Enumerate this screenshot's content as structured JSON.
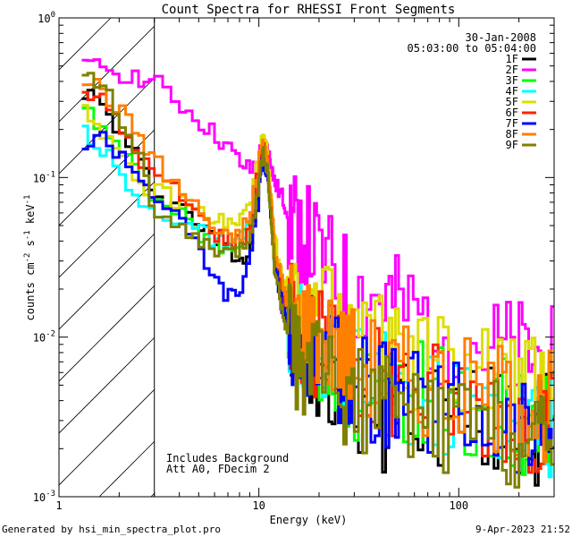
{
  "chart_data": {
    "type": "line",
    "title": "Count Spectra for RHESSI Front Segments",
    "xlabel": "Energy (keV)",
    "ylabel": "counts cm^-2 s^-1 keV^-1",
    "ylabel_parts": {
      "base": "counts cm",
      "exp1": "-2",
      "mid1": " s",
      "exp2": "-1",
      "mid2": " keV",
      "exp3": "-1"
    },
    "x_scale": "log",
    "y_scale": "log",
    "xlim": [
      1,
      300
    ],
    "ylim": [
      0.001,
      1
    ],
    "x_ticks": [
      {
        "value": 1,
        "label": "1"
      },
      {
        "value": 10,
        "label": "10"
      },
      {
        "value": 100,
        "label": "100"
      }
    ],
    "y_ticks": [
      {
        "value": 0.001,
        "base": "10",
        "exp": "-3"
      },
      {
        "value": 0.01,
        "base": "10",
        "exp": "-2"
      },
      {
        "value": 0.1,
        "base": "10",
        "exp": "-1"
      },
      {
        "value": 1,
        "base": "10",
        "exp": "0"
      }
    ],
    "hatched_region": {
      "x_from": 1,
      "x_to": 3
    },
    "date_label": "30-Jan-2008",
    "time_label": "05:03:00 to 05:04:00",
    "annotations": [
      "Includes Background",
      "Att A0, FDecim 2"
    ],
    "footer_left": "Generated by hsi_min_spectra_plot.pro",
    "footer_right": "9-Apr-2023 21:52",
    "series": [
      {
        "name": "1F",
        "color": "#000000",
        "x": [
          1.3,
          1.6,
          2,
          2.5,
          3,
          4,
          5,
          6,
          7,
          8,
          9,
          10,
          10.5,
          11,
          11.5,
          12,
          13,
          14,
          15,
          17,
          20,
          25,
          30,
          40,
          50,
          70,
          100,
          150,
          200,
          250,
          300
        ],
        "y": [
          0.35,
          0.28,
          0.18,
          0.12,
          0.08,
          0.065,
          0.05,
          0.038,
          0.035,
          0.03,
          0.04,
          0.11,
          0.14,
          0.12,
          0.06,
          0.03,
          0.018,
          0.01,
          0.009,
          0.008,
          0.007,
          0.006,
          0.004,
          0.003,
          0.004,
          0.0035,
          0.003,
          0.003,
          0.0028,
          0.0025,
          0.003
        ]
      },
      {
        "name": "2F",
        "color": "#ff00ff",
        "x": [
          1.3,
          1.6,
          2,
          2.5,
          3,
          4,
          5,
          6,
          7,
          8,
          9,
          10,
          10.5,
          11,
          11.5,
          12,
          13,
          14,
          15,
          17,
          20,
          25,
          30,
          40,
          50,
          70,
          100,
          150,
          200,
          250,
          300
        ],
        "y": [
          0.48,
          0.5,
          0.45,
          0.42,
          0.38,
          0.28,
          0.22,
          0.18,
          0.15,
          0.12,
          0.11,
          0.14,
          0.16,
          0.15,
          0.12,
          0.09,
          0.075,
          0.06,
          0.05,
          0.042,
          0.03,
          0.022,
          0.018,
          0.017,
          0.015,
          0.012,
          0.01,
          0.008,
          0.0075,
          0.007,
          0.007
        ]
      },
      {
        "name": "3F",
        "color": "#00ff00",
        "x": [
          1.3,
          1.6,
          2,
          2.5,
          3,
          4,
          5,
          6,
          7,
          8,
          9,
          10,
          10.5,
          11,
          11.5,
          12,
          13,
          14,
          15,
          17,
          20,
          25,
          30,
          40,
          50,
          70,
          100,
          150,
          200,
          250,
          300
        ],
        "y": [
          0.25,
          0.22,
          0.15,
          0.1,
          0.07,
          0.06,
          0.045,
          0.04,
          0.035,
          0.04,
          0.05,
          0.13,
          0.15,
          0.13,
          0.06,
          0.035,
          0.02,
          0.014,
          0.012,
          0.01,
          0.008,
          0.007,
          0.005,
          0.004,
          0.005,
          0.004,
          0.004,
          0.0035,
          0.003,
          0.003,
          0.0035
        ]
      },
      {
        "name": "4F",
        "color": "#00ffff",
        "x": [
          1.3,
          1.6,
          2,
          2.5,
          3,
          4,
          5,
          6,
          7,
          8,
          9,
          10,
          10.5,
          11,
          11.5,
          12,
          13,
          14,
          15,
          17,
          20,
          25,
          30,
          40,
          50,
          70,
          100,
          150,
          200,
          250,
          300
        ],
        "y": [
          0.2,
          0.15,
          0.1,
          0.065,
          0.06,
          0.055,
          0.045,
          0.04,
          0.035,
          0.04,
          0.055,
          0.12,
          0.14,
          0.12,
          0.06,
          0.03,
          0.018,
          0.013,
          0.011,
          0.01,
          0.009,
          0.007,
          0.006,
          0.005,
          0.0045,
          0.004,
          0.0038,
          0.0035,
          0.003,
          0.0028,
          0.003
        ]
      },
      {
        "name": "5F",
        "color": "#dddd00",
        "x": [
          1.3,
          1.6,
          2,
          2.5,
          3,
          4,
          5,
          6,
          7,
          8,
          9,
          10,
          10.5,
          11,
          11.5,
          12,
          13,
          14,
          15,
          17,
          20,
          25,
          30,
          40,
          50,
          70,
          100,
          150,
          200,
          250,
          300
        ],
        "y": [
          0.28,
          0.2,
          0.12,
          0.085,
          0.08,
          0.07,
          0.06,
          0.055,
          0.05,
          0.055,
          0.07,
          0.15,
          0.17,
          0.14,
          0.07,
          0.04,
          0.025,
          0.02,
          0.018,
          0.016,
          0.014,
          0.012,
          0.01,
          0.009,
          0.008,
          0.007,
          0.0065,
          0.006,
          0.005,
          0.0045,
          0.005
        ]
      },
      {
        "name": "6F",
        "color": "#ff2200",
        "x": [
          1.3,
          1.6,
          2,
          2.5,
          3,
          4,
          5,
          6,
          7,
          8,
          9,
          10,
          10.5,
          11,
          11.5,
          12,
          13,
          14,
          15,
          17,
          20,
          25,
          30,
          40,
          50,
          70,
          100,
          150,
          200,
          250,
          300
        ],
        "y": [
          0.35,
          0.3,
          0.2,
          0.13,
          0.1,
          0.075,
          0.055,
          0.045,
          0.04,
          0.04,
          0.05,
          0.13,
          0.15,
          0.12,
          0.06,
          0.03,
          0.02,
          0.014,
          0.012,
          0.01,
          0.009,
          0.007,
          0.006,
          0.005,
          0.005,
          0.0045,
          0.004,
          0.0035,
          0.0032,
          0.003,
          0.0032
        ]
      },
      {
        "name": "7F",
        "color": "#0000ff",
        "x": [
          1.3,
          1.6,
          2,
          2.5,
          3,
          4,
          5,
          6,
          7,
          8,
          9,
          10,
          10.5,
          11,
          11.5,
          12,
          13,
          14,
          15,
          17,
          20,
          25,
          30,
          40,
          50,
          70,
          100,
          150,
          200,
          250,
          300
        ],
        "y": [
          0.16,
          0.18,
          0.14,
          0.1,
          0.075,
          0.05,
          0.035,
          0.022,
          0.018,
          0.02,
          0.035,
          0.1,
          0.13,
          0.11,
          0.055,
          0.028,
          0.016,
          0.011,
          0.01,
          0.009,
          0.008,
          0.006,
          0.005,
          0.0045,
          0.004,
          0.0038,
          0.0035,
          0.003,
          0.0028,
          0.0026,
          0.0028
        ]
      },
      {
        "name": "8F",
        "color": "#ff7f00",
        "x": [
          1.3,
          1.6,
          2,
          2.5,
          3,
          4,
          5,
          6,
          7,
          8,
          9,
          10,
          10.5,
          11,
          11.5,
          12,
          13,
          14,
          15,
          17,
          20,
          25,
          30,
          40,
          50,
          70,
          100,
          150,
          200,
          250,
          300
        ],
        "y": [
          0.42,
          0.35,
          0.25,
          0.18,
          0.12,
          0.08,
          0.06,
          0.045,
          0.04,
          0.045,
          0.06,
          0.14,
          0.16,
          0.13,
          0.07,
          0.035,
          0.022,
          0.016,
          0.013,
          0.012,
          0.01,
          0.008,
          0.007,
          0.006,
          0.0055,
          0.005,
          0.0045,
          0.004,
          0.0038,
          0.0035,
          0.004
        ]
      },
      {
        "name": "9F",
        "color": "#808000",
        "x": [
          1.3,
          1.6,
          2,
          2.5,
          3,
          4,
          5,
          6,
          7,
          8,
          9,
          10,
          10.5,
          11,
          11.5,
          12,
          13,
          14,
          15,
          17,
          20,
          25,
          30,
          40,
          50,
          70,
          100,
          150,
          200,
          250,
          300
        ],
        "y": [
          0.5,
          0.38,
          0.22,
          0.13,
          0.055,
          0.045,
          0.038,
          0.035,
          0.032,
          0.035,
          0.045,
          0.11,
          0.14,
          0.11,
          0.05,
          0.025,
          0.015,
          0.01,
          0.008,
          0.007,
          0.006,
          0.005,
          0.004,
          0.0035,
          0.0035,
          0.003,
          0.003,
          0.0028,
          0.0025,
          0.0022,
          0.0025
        ]
      }
    ]
  }
}
